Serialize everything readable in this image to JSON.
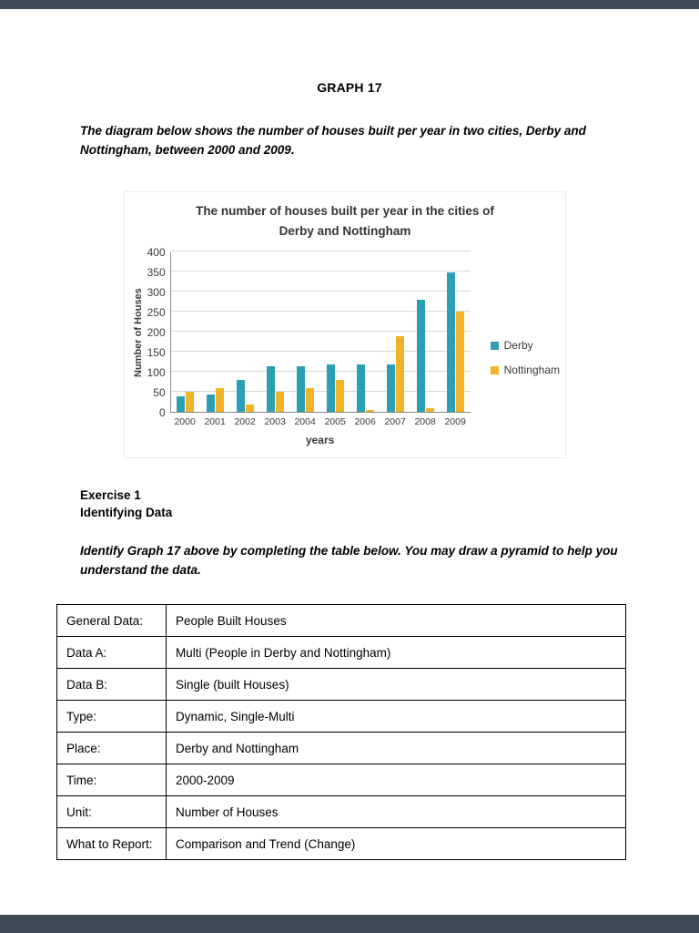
{
  "page": {
    "title": "GRAPH 17",
    "intro": "The diagram below shows the number of houses built per year in two cities, Derby and Nottingham, between 2000 and 2009.",
    "exercise_heading": "Exercise 1",
    "exercise_subheading": "Identifying Data",
    "instructions": "Identify Graph 17 above by completing the table below. You may draw a pyramid to help you understand the data."
  },
  "chart_data": {
    "type": "bar",
    "title_line1": "The number of houses built per year in the cities of",
    "title_line2": "Derby and Nottingham",
    "categories": [
      "2000",
      "2001",
      "2002",
      "2003",
      "2004",
      "2005",
      "2006",
      "2007",
      "2008",
      "2009"
    ],
    "series": [
      {
        "name": "Derby",
        "color": "#2b9fb3",
        "values": [
          40,
          45,
          80,
          115,
          115,
          118,
          118,
          120,
          280,
          348
        ]
      },
      {
        "name": "Nottingham",
        "color": "#f2b32a",
        "values": [
          50,
          60,
          20,
          50,
          60,
          80,
          5,
          190,
          10,
          250
        ]
      }
    ],
    "xlabel": "years",
    "ylabel": "Number of Houses",
    "ylim": [
      0,
      400
    ],
    "ytick_step": 50,
    "grid": true,
    "legend_position": "right"
  },
  "table": {
    "rows": [
      {
        "label": "General Data:",
        "value": "People Built Houses"
      },
      {
        "label": "Data A:",
        "value": "Multi (People in Derby and Nottingham)"
      },
      {
        "label": "Data B:",
        "value": "Single (built Houses)"
      },
      {
        "label": "Type:",
        "value": "Dynamic, Single-Multi"
      },
      {
        "label": "Place:",
        "value": "Derby and Nottingham"
      },
      {
        "label": "Time:",
        "value": "2000-2009"
      },
      {
        "label": "Unit:",
        "value": "Number of Houses"
      },
      {
        "label": "What to Report:",
        "value": "Comparison and Trend (Change)"
      }
    ]
  }
}
